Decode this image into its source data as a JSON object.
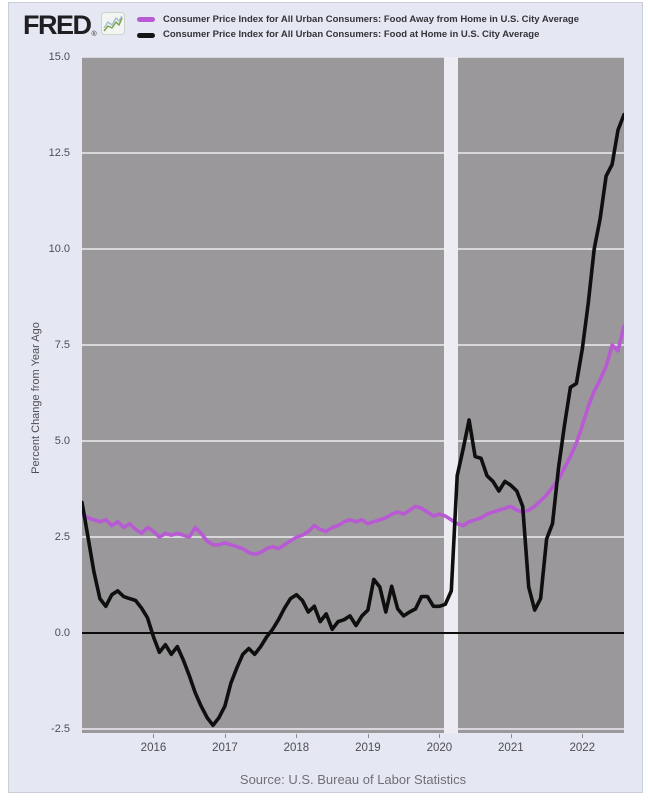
{
  "header": {
    "logo_text": "FRED",
    "logo_registered": "®",
    "logo_icon": "line-graph-icon",
    "legend": [
      {
        "label": "Consumer Price Index for All Urban Consumers: Food Away from Home in U.S. City Average",
        "color": "#b85ad3"
      },
      {
        "label": "Consumer Price Index for All Urban Consumers: Food at Home in U.S. City Average",
        "color": "#141414"
      }
    ]
  },
  "chart_data": {
    "type": "line",
    "title": "",
    "ylabel": "Percent Change from Year Ago",
    "xlabel": "",
    "x_start": "2015-01",
    "x_end": "2022-08",
    "x_tick_labels": [
      "2016",
      "2017",
      "2018",
      "2019",
      "2020",
      "2021",
      "2022"
    ],
    "y_ticks": [
      15.0,
      12.5,
      10.0,
      7.5,
      5.0,
      2.5,
      0.0,
      -2.5
    ],
    "ylim": [
      -2.6,
      15.0
    ],
    "grid": true,
    "legend_position": "top",
    "plot_background": "#9b989b",
    "gridline_color": "#d8d7dc",
    "zero_line_color": "#0c0c0c",
    "recession_band": {
      "from": "2020-02",
      "to": "2020-04",
      "color": "#edecf2"
    },
    "series": [
      {
        "name": "Consumer Price Index for All Urban Consumers: Food Away from Home in U.S. City Average",
        "color": "#b85ad3",
        "values": [
          3.1,
          3.0,
          2.95,
          2.9,
          2.95,
          2.8,
          2.9,
          2.75,
          2.85,
          2.7,
          2.6,
          2.75,
          2.65,
          2.5,
          2.6,
          2.55,
          2.6,
          2.55,
          2.5,
          2.75,
          2.6,
          2.4,
          2.3,
          2.3,
          2.35,
          2.3,
          2.25,
          2.2,
          2.1,
          2.05,
          2.1,
          2.2,
          2.25,
          2.2,
          2.3,
          2.4,
          2.5,
          2.55,
          2.65,
          2.8,
          2.7,
          2.65,
          2.75,
          2.8,
          2.9,
          2.95,
          2.9,
          2.95,
          2.85,
          2.9,
          2.95,
          3.0,
          3.1,
          3.15,
          3.1,
          3.2,
          3.3,
          3.25,
          3.15,
          3.05,
          3.1,
          3.05,
          2.95,
          2.85,
          2.8,
          2.9,
          2.95,
          3.0,
          3.1,
          3.15,
          3.2,
          3.25,
          3.3,
          3.2,
          3.15,
          3.2,
          3.3,
          3.45,
          3.6,
          3.8,
          4.0,
          4.3,
          4.6,
          4.95,
          5.4,
          5.9,
          6.3,
          6.6,
          6.95,
          7.5,
          7.35,
          8.0
        ]
      },
      {
        "name": "Consumer Price Index for All Urban Consumers: Food at Home in U.S. City Average",
        "color": "#0f0f0f",
        "values": [
          3.4,
          2.5,
          1.6,
          0.9,
          0.7,
          1.0,
          1.1,
          0.95,
          0.9,
          0.85,
          0.65,
          0.4,
          -0.1,
          -0.5,
          -0.3,
          -0.55,
          -0.35,
          -0.7,
          -1.1,
          -1.55,
          -1.9,
          -2.2,
          -2.4,
          -2.2,
          -1.9,
          -1.3,
          -0.9,
          -0.55,
          -0.4,
          -0.55,
          -0.35,
          -0.1,
          0.1,
          0.35,
          0.65,
          0.9,
          1.0,
          0.85,
          0.55,
          0.7,
          0.3,
          0.5,
          0.1,
          0.3,
          0.35,
          0.45,
          0.2,
          0.45,
          0.6,
          1.4,
          1.2,
          0.55,
          1.22,
          0.63,
          0.45,
          0.55,
          0.63,
          0.95,
          0.95,
          0.7,
          0.7,
          0.75,
          1.1,
          4.1,
          4.8,
          5.55,
          4.6,
          4.55,
          4.1,
          3.95,
          3.7,
          3.95,
          3.85,
          3.7,
          3.3,
          1.2,
          0.6,
          0.9,
          2.45,
          2.85,
          4.3,
          5.4,
          6.4,
          6.5,
          7.4,
          8.6,
          10.0,
          10.8,
          11.9,
          12.2,
          13.1,
          13.5
        ]
      }
    ]
  },
  "footer": {
    "source": "Source: U.S. Bureau of Labor Statistics"
  }
}
